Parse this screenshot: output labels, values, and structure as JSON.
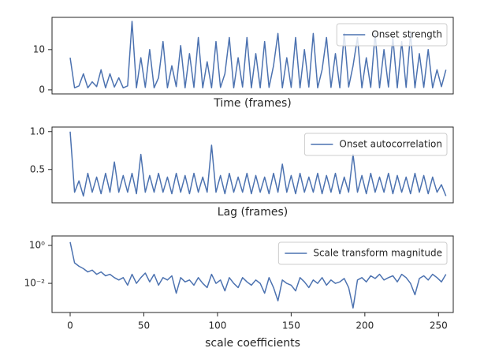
{
  "chart_data": [
    {
      "type": "line",
      "xlabel": "Time (frames)",
      "legend": "upper right",
      "x": [
        0,
        3,
        6,
        9,
        12,
        15,
        18,
        21,
        24,
        27,
        30,
        33,
        36,
        39,
        42,
        45,
        48,
        51,
        54,
        57,
        60,
        63,
        66,
        69,
        72,
        75,
        78,
        81,
        84,
        87,
        90,
        93,
        96,
        99,
        102,
        105,
        108,
        111,
        114,
        117,
        120,
        123,
        126,
        129,
        132,
        135,
        138,
        141,
        144,
        147,
        150,
        153,
        156,
        159,
        162,
        165,
        168,
        171,
        174,
        177,
        180,
        183,
        186,
        189,
        192,
        195,
        198,
        201,
        204,
        207,
        210,
        213,
        216,
        219,
        222,
        225,
        228,
        231,
        234,
        237,
        240,
        243,
        246,
        249,
        252,
        255
      ],
      "series": [
        {
          "name": "Onset strength",
          "color": "#4c72b0",
          "values": [
            8,
            0.5,
            1,
            4,
            0.5,
            2,
            0.8,
            5,
            0.5,
            4,
            0.7,
            3,
            0.5,
            1,
            17,
            0.5,
            8,
            0.6,
            10,
            0.5,
            3,
            12,
            0.5,
            6,
            0.8,
            11,
            0.5,
            9,
            0.6,
            13,
            0.5,
            7,
            0.5,
            12,
            0.6,
            4,
            13,
            0.5,
            8,
            0.7,
            13,
            0.5,
            9,
            0.5,
            12,
            0.6,
            6,
            14,
            0.5,
            8,
            0.6,
            13,
            0.5,
            10,
            0.7,
            14,
            0.5,
            5,
            13,
            0.6,
            9,
            0.5,
            14,
            0.7,
            6,
            13,
            0.5,
            8,
            0.6,
            14,
            0.5,
            10,
            0.7,
            13,
            0.5,
            12,
            0.6,
            14,
            0.5,
            9,
            0.6,
            10,
            0.5,
            5,
            0.8,
            5
          ]
        }
      ],
      "xlim": [
        -12.3,
        260
      ],
      "ylim": [
        -1,
        18
      ],
      "yticks": [
        0,
        10
      ]
    },
    {
      "type": "line",
      "xlabel": "Lag (frames)",
      "legend": "upper right",
      "x": [
        0,
        3,
        6,
        9,
        12,
        15,
        18,
        21,
        24,
        27,
        30,
        33,
        36,
        39,
        42,
        45,
        48,
        51,
        54,
        57,
        60,
        63,
        66,
        69,
        72,
        75,
        78,
        81,
        84,
        87,
        90,
        93,
        96,
        99,
        102,
        105,
        108,
        111,
        114,
        117,
        120,
        123,
        126,
        129,
        132,
        135,
        138,
        141,
        144,
        147,
        150,
        153,
        156,
        159,
        162,
        165,
        168,
        171,
        174,
        177,
        180,
        183,
        186,
        189,
        192,
        195,
        198,
        201,
        204,
        207,
        210,
        213,
        216,
        219,
        222,
        225,
        228,
        231,
        234,
        237,
        240,
        243,
        246,
        249,
        252,
        255
      ],
      "series": [
        {
          "name": "Onset autocorrelation",
          "color": "#4c72b0",
          "values": [
            1.0,
            0.2,
            0.35,
            0.15,
            0.45,
            0.2,
            0.4,
            0.18,
            0.45,
            0.2,
            0.6,
            0.2,
            0.42,
            0.2,
            0.45,
            0.18,
            0.7,
            0.2,
            0.42,
            0.2,
            0.45,
            0.2,
            0.4,
            0.18,
            0.45,
            0.2,
            0.42,
            0.18,
            0.45,
            0.2,
            0.4,
            0.2,
            0.82,
            0.2,
            0.42,
            0.18,
            0.45,
            0.2,
            0.4,
            0.2,
            0.45,
            0.18,
            0.42,
            0.2,
            0.4,
            0.18,
            0.45,
            0.2,
            0.57,
            0.2,
            0.42,
            0.18,
            0.45,
            0.2,
            0.4,
            0.2,
            0.45,
            0.18,
            0.42,
            0.2,
            0.45,
            0.18,
            0.4,
            0.2,
            0.7,
            0.2,
            0.42,
            0.18,
            0.45,
            0.2,
            0.4,
            0.2,
            0.45,
            0.18,
            0.42,
            0.2,
            0.4,
            0.18,
            0.45,
            0.2,
            0.42,
            0.18,
            0.4,
            0.2,
            0.3,
            0.15
          ]
        }
      ],
      "xlim": [
        -12.3,
        260
      ],
      "ylim": [
        0.06,
        1.06
      ],
      "yticks": [
        {
          "value": 0.5,
          "label": "0.5"
        },
        {
          "value": 1,
          "label": "1.0"
        }
      ]
    },
    {
      "type": "line",
      "xlabel": "scale coefficients",
      "legend": "upper right",
      "log_y": true,
      "x": [
        0,
        3,
        6,
        9,
        12,
        15,
        18,
        21,
        24,
        27,
        30,
        33,
        36,
        39,
        42,
        45,
        48,
        51,
        54,
        57,
        60,
        63,
        66,
        69,
        72,
        75,
        78,
        81,
        84,
        87,
        90,
        93,
        96,
        99,
        102,
        105,
        108,
        111,
        114,
        117,
        120,
        123,
        126,
        129,
        132,
        135,
        138,
        141,
        144,
        147,
        150,
        153,
        156,
        159,
        162,
        165,
        168,
        171,
        174,
        177,
        180,
        183,
        186,
        189,
        192,
        195,
        198,
        201,
        204,
        207,
        210,
        213,
        216,
        219,
        222,
        225,
        228,
        231,
        234,
        237,
        240,
        243,
        246,
        249,
        252,
        255
      ],
      "series": [
        {
          "name": "Scale transform magnitude",
          "color": "#4c72b0",
          "values": [
            1.5,
            0.12,
            0.08,
            0.06,
            0.04,
            0.05,
            0.03,
            0.04,
            0.025,
            0.03,
            0.02,
            0.015,
            0.02,
            0.008,
            0.03,
            0.01,
            0.02,
            0.035,
            0.012,
            0.03,
            0.008,
            0.02,
            0.015,
            0.025,
            0.003,
            0.02,
            0.012,
            0.015,
            0.008,
            0.02,
            0.01,
            0.006,
            0.03,
            0.01,
            0.015,
            0.004,
            0.02,
            0.01,
            0.006,
            0.02,
            0.012,
            0.008,
            0.015,
            0.01,
            0.003,
            0.02,
            0.006,
            0.0012,
            0.015,
            0.01,
            0.008,
            0.004,
            0.02,
            0.012,
            0.006,
            0.015,
            0.01,
            0.02,
            0.008,
            0.015,
            0.01,
            0.012,
            0.018,
            0.006,
            0.0005,
            0.015,
            0.02,
            0.012,
            0.025,
            0.018,
            0.03,
            0.015,
            0.02,
            0.025,
            0.012,
            0.03,
            0.02,
            0.01,
            0.0025,
            0.018,
            0.025,
            0.015,
            0.03,
            0.02,
            0.012,
            0.03
          ]
        }
      ],
      "xlim": [
        -12.3,
        260
      ],
      "ylim": [
        0.00029,
        3.16
      ],
      "xticks": [
        0,
        50,
        100,
        150,
        200,
        250
      ],
      "yticks": [
        {
          "value": 0.01,
          "label": "10⁻²"
        },
        {
          "value": 1,
          "label": "10⁰"
        }
      ]
    }
  ]
}
